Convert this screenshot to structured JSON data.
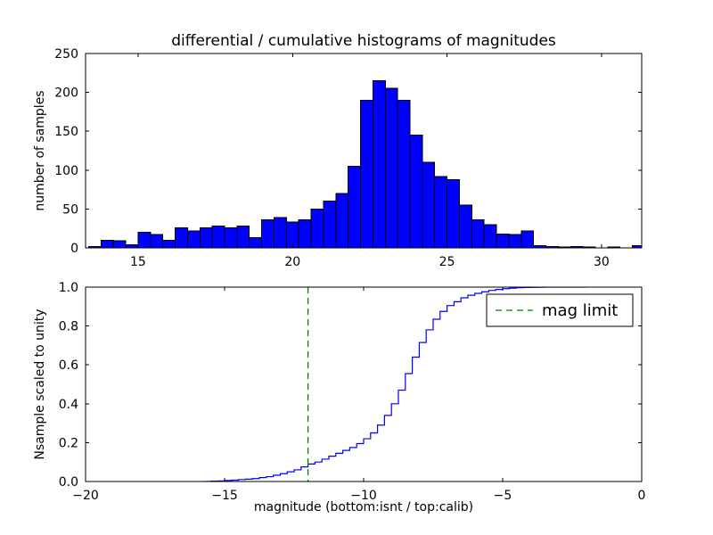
{
  "figure": {
    "background": "#ffffff",
    "frame_color": "#000000"
  },
  "chart_data": [
    {
      "type": "bar",
      "title": "differential / cumulative histograms of magnitudes",
      "xlabel": "",
      "ylabel": "number of samples",
      "xlim": [
        13.3,
        31.3
      ],
      "ylim": [
        0,
        250
      ],
      "grid": false,
      "xticks": [
        15,
        20,
        25,
        30
      ],
      "xticklabels": [
        "15",
        "20",
        "25",
        "30"
      ],
      "yticks": [
        0,
        50,
        100,
        150,
        200,
        250
      ],
      "yticklabels": [
        "0",
        "50",
        "100",
        "150",
        "200",
        "250"
      ],
      "bar_color": "#0000ff",
      "bar_edge_color": "#000000",
      "bin_start": 13.4,
      "bin_width": 0.4,
      "counts": [
        2,
        10,
        9,
        4,
        20,
        17,
        10,
        26,
        22,
        26,
        28,
        26,
        28,
        13,
        36,
        39,
        33,
        36,
        50,
        60,
        70,
        105,
        190,
        215,
        205,
        190,
        145,
        110,
        92,
        88,
        55,
        36,
        30,
        18,
        17,
        22,
        3,
        2,
        1,
        2,
        1,
        0,
        1,
        0,
        3
      ]
    },
    {
      "type": "line",
      "title": "",
      "xlabel": "magnitude (bottom:isnt / top:calib)",
      "ylabel": "Nsample scaled to unity",
      "xlim": [
        -20,
        0
      ],
      "ylim": [
        0,
        1
      ],
      "grid": false,
      "xticks": [
        -20,
        -15,
        -10,
        -5,
        0
      ],
      "xticklabels": [
        "−20",
        "−15",
        "−10",
        "−5",
        "0"
      ],
      "yticks": [
        0,
        0.2,
        0.4,
        0.6,
        0.8,
        1
      ],
      "yticklabels": [
        "0.0",
        "0.2",
        "0.4",
        "0.6",
        "0.8",
        "1.0"
      ],
      "line_color": "#0000ff",
      "steps": {
        "x": [
          -15.75,
          -15.5,
          -15.25,
          -15.0,
          -14.75,
          -14.5,
          -14.25,
          -14.0,
          -13.75,
          -13.5,
          -13.25,
          -13.0,
          -12.75,
          -12.5,
          -12.25,
          -12.0,
          -11.75,
          -11.5,
          -11.25,
          -11.0,
          -10.75,
          -10.5,
          -10.25,
          -10.0,
          -9.75,
          -9.5,
          -9.25,
          -9.0,
          -8.75,
          -8.5,
          -8.25,
          -8.0,
          -7.75,
          -7.5,
          -7.25,
          -7.0,
          -6.75,
          -6.5,
          -6.25,
          -6.0,
          -5.75,
          -5.5,
          -5.25,
          -5.0,
          -4.75,
          -4.5,
          -4.25,
          -4.0,
          -3.75,
          -3.5,
          -3.25,
          -3.0,
          -2.75,
          -2.5,
          -2.25,
          -2.0
        ],
        "y": [
          0,
          0.002,
          0.003,
          0.005,
          0.007,
          0.01,
          0.012,
          0.015,
          0.02,
          0.025,
          0.032,
          0.04,
          0.05,
          0.06,
          0.075,
          0.09,
          0.1,
          0.115,
          0.13,
          0.145,
          0.16,
          0.175,
          0.195,
          0.22,
          0.25,
          0.29,
          0.34,
          0.4,
          0.47,
          0.555,
          0.64,
          0.715,
          0.78,
          0.835,
          0.875,
          0.905,
          0.925,
          0.945,
          0.958,
          0.968,
          0.976,
          0.983,
          0.988,
          0.992,
          0.995,
          0.997,
          0.998,
          0.999,
          0.9995,
          1.0,
          1.0,
          1.0,
          1.0,
          1.0,
          1.0,
          1.0
        ]
      },
      "vline": {
        "x": -12,
        "color": "#008000",
        "style": "dashed"
      },
      "legend": {
        "label": "mag limit",
        "position": "upper right"
      }
    }
  ]
}
